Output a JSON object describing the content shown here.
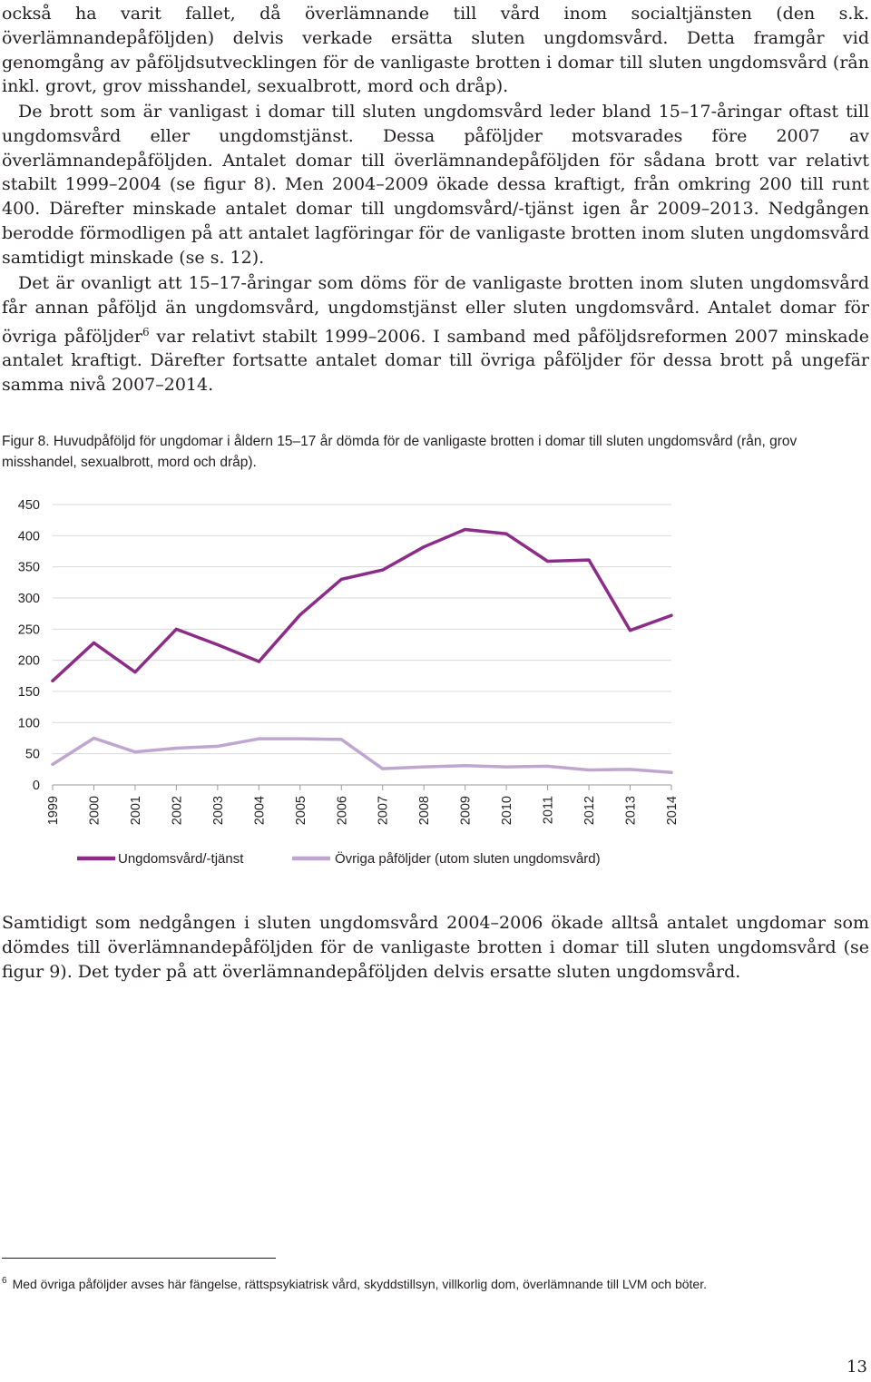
{
  "paragraphs": {
    "p1": "också ha varit fallet, då överlämnande till vård inom socialtjänsten (den s.k. överlämnandepåföljden) delvis verkade ersätta sluten ungdomsvård. Detta framgår vid genomgång av påföljdsutvecklingen för de vanligaste brotten i domar till sluten ungdomsvård (rån inkl. grovt, grov misshandel, sexualbrott, mord och dråp).",
    "p2": "De brott som är vanligast i domar till sluten ungdomsvård leder bland 15–17-åringar oftast till ungdomsvård eller ungdomstjänst. Dessa påföljder motsvarades före 2007 av överlämnandepåföljden. Antalet domar till överlämnandepåföljden för sådana brott var relativt stabilt 1999–2004 (se figur 8). Men 2004–2009 ökade dessa kraftigt, från omkring 200 till runt 400. Därefter minskade antalet domar till ungdomsvård/-tjänst igen år 2009–2013. Nedgången berodde förmodligen på att antalet lagföringar för de vanligaste brotten inom sluten ungdomsvård samtidigt minskade (se s. 12).",
    "p3a": "Det är ovanligt att 15–17-åringar som döms för de vanligaste brotten inom sluten ungdomsvård får annan påföljd än ungdomsvård, ungdomstjänst eller sluten ungdomsvård. Antalet domar för övriga påföljder",
    "p3_fn": "6",
    "p3b": " var relativt stabilt 1999–2006. I samband med påföljdsreformen 2007 minskade antalet kraftigt. Därefter fortsatte antalet domar till övriga påföljder för dessa brott på ungefär samma nivå 2007–2014.",
    "p4": "Samtidigt som nedgången i sluten ungdomsvård 2004–2006 ökade alltså antalet ungdomar som dömdes till överlämnandepåföljden för de vanligaste brotten i domar till sluten ungdomsvård (se figur 9). Det tyder på att överlämnandepåföljden delvis ersatte sluten ungdomsvård."
  },
  "figure": {
    "label": "Figur 8.",
    "caption": " Huvudpåföljd för ungdomar i åldern 15–17 år dömda för de vanligaste brotten i domar till sluten ungdomsvård (rån, grov misshandel, sexualbrott, mord och dråp)."
  },
  "chart_data": {
    "type": "line",
    "title": "",
    "xlabel": "",
    "ylabel": "",
    "x": [
      "1999",
      "2000",
      "2001",
      "2002",
      "2003",
      "2004",
      "2005",
      "2006",
      "2007",
      "2008",
      "2009",
      "2010",
      "2011",
      "2012",
      "2013",
      "2014"
    ],
    "ylim": [
      0,
      450
    ],
    "yticks": [
      "0",
      "50",
      "100",
      "150",
      "200",
      "250",
      "300",
      "350",
      "400",
      "450"
    ],
    "grid": "horizontal",
    "legend_position": "bottom",
    "series": [
      {
        "name": "Ungdomsvård/-tjänst",
        "color": "#8b2c88",
        "values": [
          167,
          228,
          181,
          250,
          225,
          198,
          273,
          330,
          345,
          382,
          410,
          403,
          359,
          361,
          248,
          272
        ]
      },
      {
        "name": "Övriga påföljder (utom sluten ungdomsvård)",
        "color": "#bfa6cf",
        "values": [
          33,
          75,
          53,
          59,
          62,
          74,
          74,
          73,
          26,
          29,
          31,
          29,
          30,
          24,
          25,
          20
        ]
      }
    ]
  },
  "footnote": {
    "marker": "6",
    "text": "Med övriga påföljder avses här fängelse, rättspsykiatrisk vård, skyddstillsyn, villkorlig dom, överlämnande till LVM och böter."
  },
  "page_number": "13"
}
